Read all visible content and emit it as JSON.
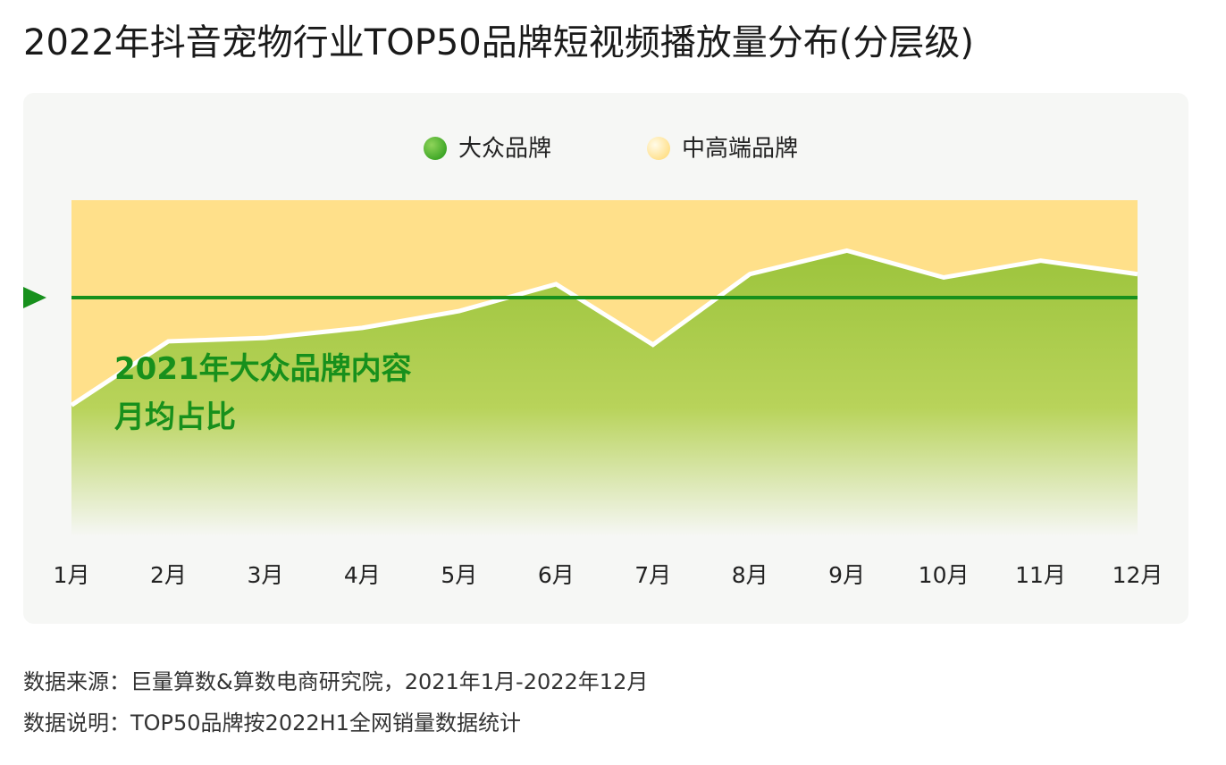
{
  "chart_data": {
    "type": "stacked_area",
    "title": "2022年抖音宠物行业TOP50品牌短视频播放量分布(分层级)",
    "categories": [
      "1月",
      "2月",
      "3月",
      "4月",
      "5月",
      "6月",
      "7月",
      "8月",
      "9月",
      "10月",
      "11月",
      "12月"
    ],
    "series": [
      {
        "name": "大众品牌",
        "color": "#5cb82e",
        "values": [
          39,
          58,
          59,
          62,
          67,
          75,
          57,
          78,
          85,
          77,
          82,
          78
        ]
      },
      {
        "name": "中高端品牌",
        "color": "#ffe08a",
        "values": [
          61,
          42,
          41,
          38,
          33,
          25,
          43,
          22,
          15,
          23,
          18,
          22
        ]
      }
    ],
    "ylim": [
      0,
      100
    ],
    "reference_line": {
      "value": 71,
      "label": "2021年大众品牌内容\n月均占比",
      "color": "#17901c"
    },
    "legend": "top",
    "source": "数据来源：巨量算数&算数电商研究院，2021年1月-2022年12月",
    "note": "数据说明：TOP50品牌按2022H1全网销量数据统计"
  }
}
